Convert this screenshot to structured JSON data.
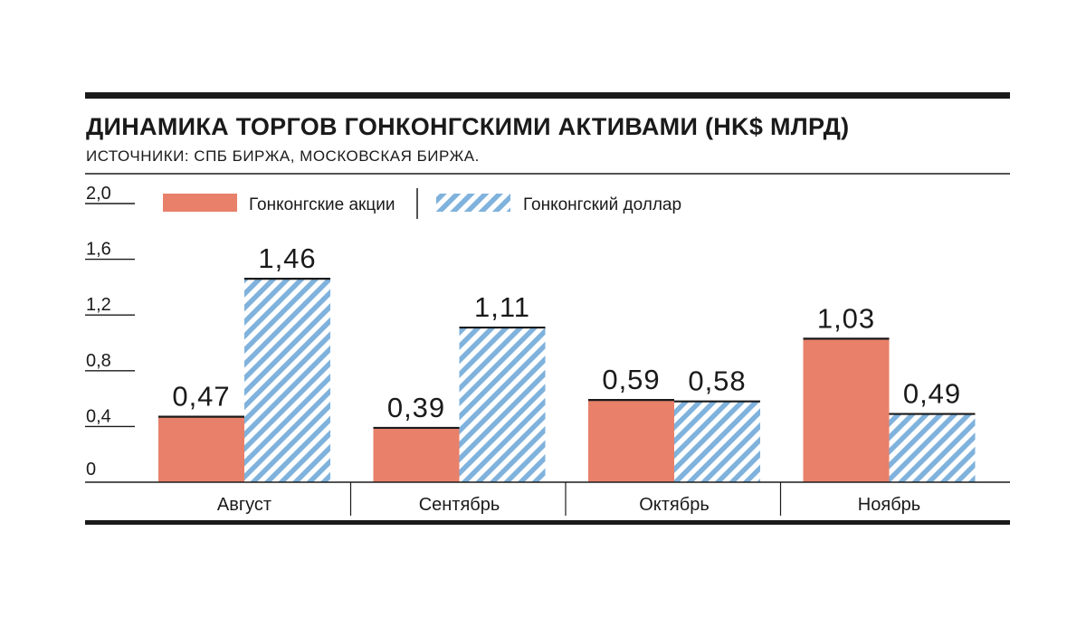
{
  "chart_data": {
    "type": "bar",
    "title": "ДИНАМИКА ТОРГОВ ГОНКОНГСКИМИ АКТИВАМИ (HK$ МЛРД)",
    "subtitle": "ИСТОЧНИКИ: СПБ БИРЖА, МОСКОВСКАЯ БИРЖА.",
    "categories": [
      "Август",
      "Сентябрь",
      "Октябрь",
      "Ноябрь"
    ],
    "series": [
      {
        "name": "Гонконгские акции",
        "values": [
          0.47,
          0.39,
          0.59,
          1.03
        ],
        "value_labels": [
          "0,47",
          "0,39",
          "0,59",
          "1,03"
        ],
        "color": "#e8806a",
        "fill": "solid"
      },
      {
        "name": "Гонконгский доллар",
        "values": [
          1.46,
          1.11,
          0.58,
          0.49
        ],
        "value_labels": [
          "1,46",
          "1,11",
          "0,58",
          "0,49"
        ],
        "color": "#7fb2dc",
        "fill": "hatched"
      }
    ],
    "y_ticks": [
      0,
      0.4,
      0.8,
      1.2,
      1.6,
      2.0
    ],
    "y_tick_labels": [
      "0",
      "0,4",
      "0,8",
      "1,2",
      "1,6",
      "2,0"
    ],
    "ylim": [
      0,
      2.0
    ],
    "grid": false,
    "legend_position": "top"
  }
}
